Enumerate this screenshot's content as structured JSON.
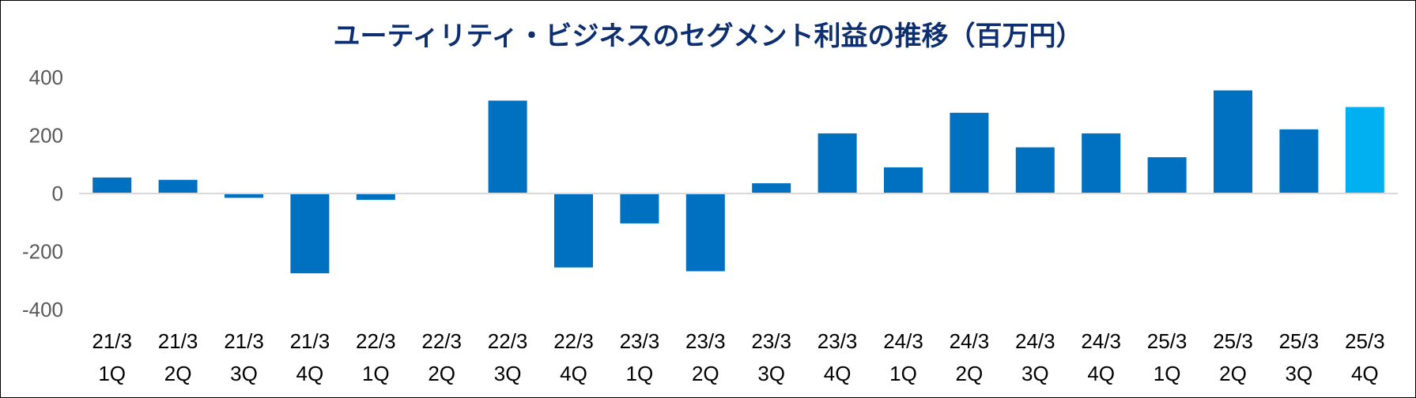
{
  "chart_data": {
    "type": "bar",
    "title": "ユーティリティ・ビジネスのセグメント利益の推移（百万円）",
    "xlabel": "",
    "ylabel": "",
    "ylim": [
      -400,
      400
    ],
    "yticks": [
      "400",
      "200",
      "0",
      "-200",
      "-400"
    ],
    "ytick_values": [
      400,
      200,
      0,
      -200,
      -400
    ],
    "grid": false,
    "categories": [
      {
        "year": "21/3",
        "quarter": "1Q"
      },
      {
        "year": "21/3",
        "quarter": "2Q"
      },
      {
        "year": "21/3",
        "quarter": "3Q"
      },
      {
        "year": "21/3",
        "quarter": "4Q"
      },
      {
        "year": "22/3",
        "quarter": "1Q"
      },
      {
        "year": "22/3",
        "quarter": "2Q"
      },
      {
        "year": "22/3",
        "quarter": "3Q"
      },
      {
        "year": "22/3",
        "quarter": "4Q"
      },
      {
        "year": "23/3",
        "quarter": "1Q"
      },
      {
        "year": "23/3",
        "quarter": "2Q"
      },
      {
        "year": "23/3",
        "quarter": "3Q"
      },
      {
        "year": "23/3",
        "quarter": "4Q"
      },
      {
        "year": "24/3",
        "quarter": "1Q"
      },
      {
        "year": "24/3",
        "quarter": "2Q"
      },
      {
        "year": "24/3",
        "quarter": "3Q"
      },
      {
        "year": "24/3",
        "quarter": "4Q"
      },
      {
        "year": "25/3",
        "quarter": "1Q"
      },
      {
        "year": "25/3",
        "quarter": "2Q"
      },
      {
        "year": "25/3",
        "quarter": "3Q"
      },
      {
        "year": "25/3",
        "quarter": "4Q"
      }
    ],
    "values": [
      55,
      47,
      -15,
      -275,
      -22,
      0,
      320,
      -255,
      -103,
      -268,
      35,
      207,
      90,
      278,
      159,
      207,
      125,
      355,
      221,
      298
    ],
    "colors": {
      "bar": "#0070c0",
      "highlight": "#00b0f0",
      "axis": "#d9d9d9"
    },
    "highlight_index": 19
  }
}
